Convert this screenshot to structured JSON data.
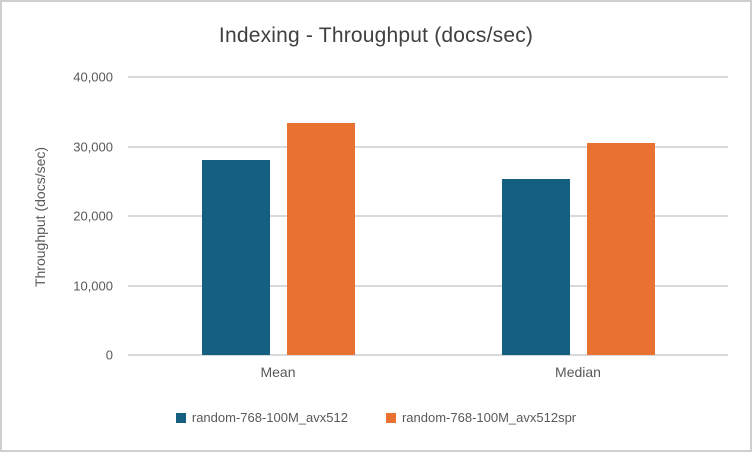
{
  "chart": {
    "frame_border_color": "#d0cece",
    "background_color": "#ffffff",
    "gridline_color": "#d9d9d9",
    "title_color": "#404040",
    "axis_text_color": "#595959"
  },
  "chart_data": {
    "type": "bar",
    "title": "Indexing - Throughput (docs/sec)",
    "xlabel": "",
    "ylabel": "Throughput (docs/sec)",
    "categories": [
      "Mean",
      "Median"
    ],
    "series": [
      {
        "name": "random-768-100M_avx512",
        "color": "#156082",
        "values": [
          28000,
          25300
        ]
      },
      {
        "name": "random-768-100M_avx512spr",
        "color": "#E97132",
        "values": [
          33400,
          30500
        ]
      }
    ],
    "ylim": [
      0,
      40000
    ],
    "ytick_interval": 10000,
    "ytick_labels": [
      "0",
      "10,000",
      "20,000",
      "30,000",
      "40,000"
    ],
    "grid": true,
    "legend_position": "bottom"
  }
}
